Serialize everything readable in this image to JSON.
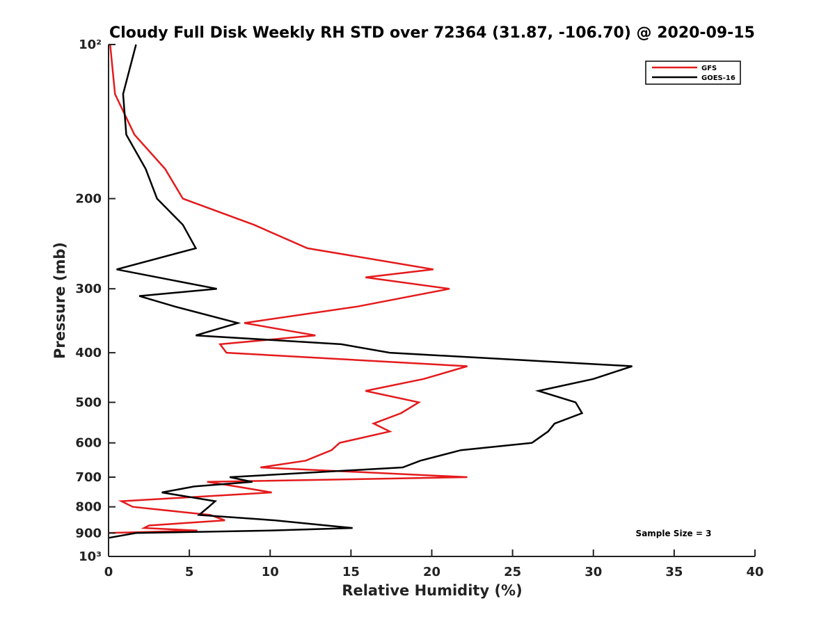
{
  "chart_data": {
    "type": "line",
    "title": "Cloudy Full Disk Weekly RH STD over 72364 (31.87, -106.70) @ 2020-09-15",
    "xlabel": "Relative Humidity (%)",
    "ylabel": "Pressure (mb)",
    "xlim": [
      0,
      40
    ],
    "ylim": [
      100,
      1000
    ],
    "y_scale": "log",
    "y_reversed": true,
    "x_ticks": [
      0,
      5,
      10,
      15,
      20,
      25,
      30,
      35,
      40
    ],
    "x_tick_labels": [
      "0",
      "5",
      "10",
      "15",
      "20",
      "25",
      "30",
      "35",
      "40"
    ],
    "y_ticks": [
      100,
      200,
      300,
      400,
      500,
      600,
      700,
      800,
      900,
      1000
    ],
    "y_tick_labels": [
      "10²",
      "200",
      "300",
      "400",
      "500",
      "600",
      "700",
      "800",
      "900",
      "10³"
    ],
    "grid": false,
    "legend_position": "top-right",
    "annotation": "Sample Size = 3",
    "series": [
      {
        "name": "GFS",
        "color": "#e41a1c",
        "points": [
          [
            0.1,
            100
          ],
          [
            0.4,
            125
          ],
          [
            1.6,
            150
          ],
          [
            3.5,
            175
          ],
          [
            4.6,
            200
          ],
          [
            9.0,
            225
          ],
          [
            12.3,
            250
          ],
          [
            20.1,
            275
          ],
          [
            15.9,
            285
          ],
          [
            21.1,
            300
          ],
          [
            15.4,
            325
          ],
          [
            8.4,
            350
          ],
          [
            12.8,
            370
          ],
          [
            6.9,
            385
          ],
          [
            7.3,
            400
          ],
          [
            22.2,
            425
          ],
          [
            19.5,
            450
          ],
          [
            15.9,
            475
          ],
          [
            19.2,
            500
          ],
          [
            18.1,
            525
          ],
          [
            16.4,
            550
          ],
          [
            17.4,
            570
          ],
          [
            14.3,
            600
          ],
          [
            13.8,
            620
          ],
          [
            12.2,
            650
          ],
          [
            9.4,
            670
          ],
          [
            22.2,
            700
          ],
          [
            6.1,
            715
          ],
          [
            7.9,
            730
          ],
          [
            10.1,
            750
          ],
          [
            0.8,
            780
          ],
          [
            1.5,
            800
          ],
          [
            6.3,
            830
          ],
          [
            7.2,
            850
          ],
          [
            2.5,
            870
          ],
          [
            2.2,
            880
          ],
          [
            5.5,
            890
          ],
          [
            0.0,
            900
          ]
        ]
      },
      {
        "name": "GOES-16",
        "color": "#000000",
        "points": [
          [
            1.7,
            100
          ],
          [
            0.9,
            125
          ],
          [
            1.1,
            150
          ],
          [
            2.3,
            175
          ],
          [
            3.0,
            200
          ],
          [
            4.6,
            225
          ],
          [
            5.4,
            250
          ],
          [
            0.5,
            275
          ],
          [
            6.7,
            300
          ],
          [
            1.9,
            310
          ],
          [
            4.1,
            325
          ],
          [
            8.0,
            350
          ],
          [
            5.4,
            370
          ],
          [
            14.4,
            385
          ],
          [
            17.4,
            400
          ],
          [
            32.4,
            425
          ],
          [
            30.0,
            450
          ],
          [
            26.6,
            475
          ],
          [
            28.9,
            500
          ],
          [
            29.3,
            525
          ],
          [
            27.6,
            550
          ],
          [
            27.2,
            570
          ],
          [
            26.2,
            600
          ],
          [
            21.8,
            620
          ],
          [
            19.3,
            650
          ],
          [
            18.2,
            670
          ],
          [
            7.5,
            700
          ],
          [
            8.9,
            715
          ],
          [
            5.3,
            730
          ],
          [
            3.3,
            750
          ],
          [
            6.6,
            780
          ],
          [
            6.2,
            800
          ],
          [
            5.6,
            830
          ],
          [
            10.3,
            850
          ],
          [
            13.5,
            870
          ],
          [
            15.1,
            880
          ],
          [
            10.0,
            890
          ],
          [
            1.7,
            900
          ],
          [
            0.0,
            920
          ]
        ]
      }
    ]
  }
}
